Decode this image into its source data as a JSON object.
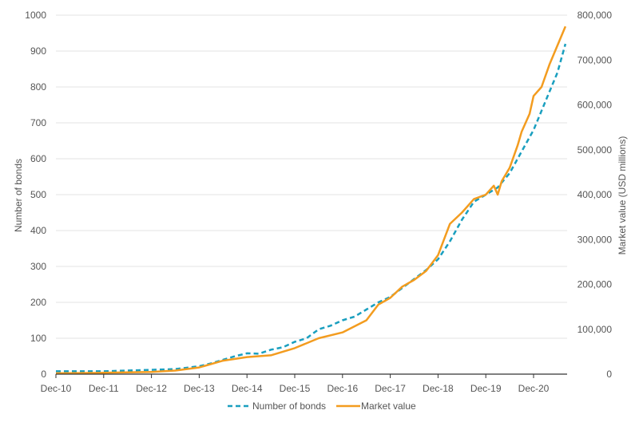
{
  "chart_data": {
    "type": "line",
    "title": "",
    "xlabel": "",
    "ylabel": "Number of bonds",
    "y2label": "Market value (USD millions)",
    "x_ticks": [
      "Dec-10",
      "Dec-11",
      "Dec-12",
      "Dec-13",
      "Dec-14",
      "Dec-15",
      "Dec-16",
      "Dec-17",
      "Dec-18",
      "Dec-19",
      "Dec-20"
    ],
    "ylim": [
      0,
      1000
    ],
    "y_ticks": [
      "0",
      "100",
      "200",
      "300",
      "400",
      "500",
      "600",
      "700",
      "800",
      "900",
      "1000"
    ],
    "y2lim": [
      0,
      800000
    ],
    "y2_ticks": [
      "0",
      "100,000",
      "200,000",
      "300,000",
      "400,000",
      "500,000",
      "600,000",
      "700,000",
      "800,000"
    ],
    "grid": true,
    "legend_position": "bottom",
    "series": [
      {
        "name": "Number of bonds",
        "axis": "left",
        "color": "#1a9fbf",
        "style": "dashed",
        "x": [
          "2010-12",
          "2011-12",
          "2012-12",
          "2013-06",
          "2013-12",
          "2014-03",
          "2014-06",
          "2014-09",
          "2014-12",
          "2015-03",
          "2015-06",
          "2015-09",
          "2015-12",
          "2016-03",
          "2016-06",
          "2016-09",
          "2016-12",
          "2017-03",
          "2017-06",
          "2017-09",
          "2017-12",
          "2018-03",
          "2018-06",
          "2018-09",
          "2018-12",
          "2019-03",
          "2019-06",
          "2019-09",
          "2019-12",
          "2020-03",
          "2020-06",
          "2020-09",
          "2020-12",
          "2021-03",
          "2021-06",
          "2021-08"
        ],
        "values": [
          8,
          8,
          12,
          14,
          22,
          30,
          40,
          50,
          58,
          57,
          68,
          75,
          90,
          100,
          125,
          135,
          150,
          160,
          180,
          200,
          215,
          240,
          265,
          290,
          320,
          370,
          430,
          480,
          500,
          520,
          560,
          620,
          680,
          760,
          840,
          920
        ]
      },
      {
        "name": "Market value",
        "axis": "right",
        "color": "#f39c1f",
        "style": "solid",
        "x": [
          "2010-12",
          "2011-12",
          "2012-12",
          "2013-06",
          "2013-12",
          "2014-06",
          "2014-12",
          "2015-06",
          "2015-12",
          "2016-06",
          "2016-12",
          "2017-06",
          "2017-09",
          "2017-12",
          "2018-03",
          "2018-06",
          "2018-09",
          "2018-12",
          "2019-03",
          "2019-06",
          "2019-09",
          "2019-12",
          "2020-02",
          "2020-03",
          "2020-04",
          "2020-06",
          "2020-08",
          "2020-09",
          "2020-11",
          "2020-12",
          "2021-02",
          "2021-04",
          "2021-08"
        ],
        "values": [
          2000,
          3000,
          5000,
          8000,
          15000,
          30000,
          38000,
          42000,
          58000,
          80000,
          93000,
          120000,
          155000,
          170000,
          195000,
          210000,
          230000,
          265000,
          335000,
          360000,
          390000,
          400000,
          420000,
          400000,
          430000,
          460000,
          510000,
          540000,
          580000,
          620000,
          640000,
          690000,
          775000
        ]
      }
    ]
  }
}
